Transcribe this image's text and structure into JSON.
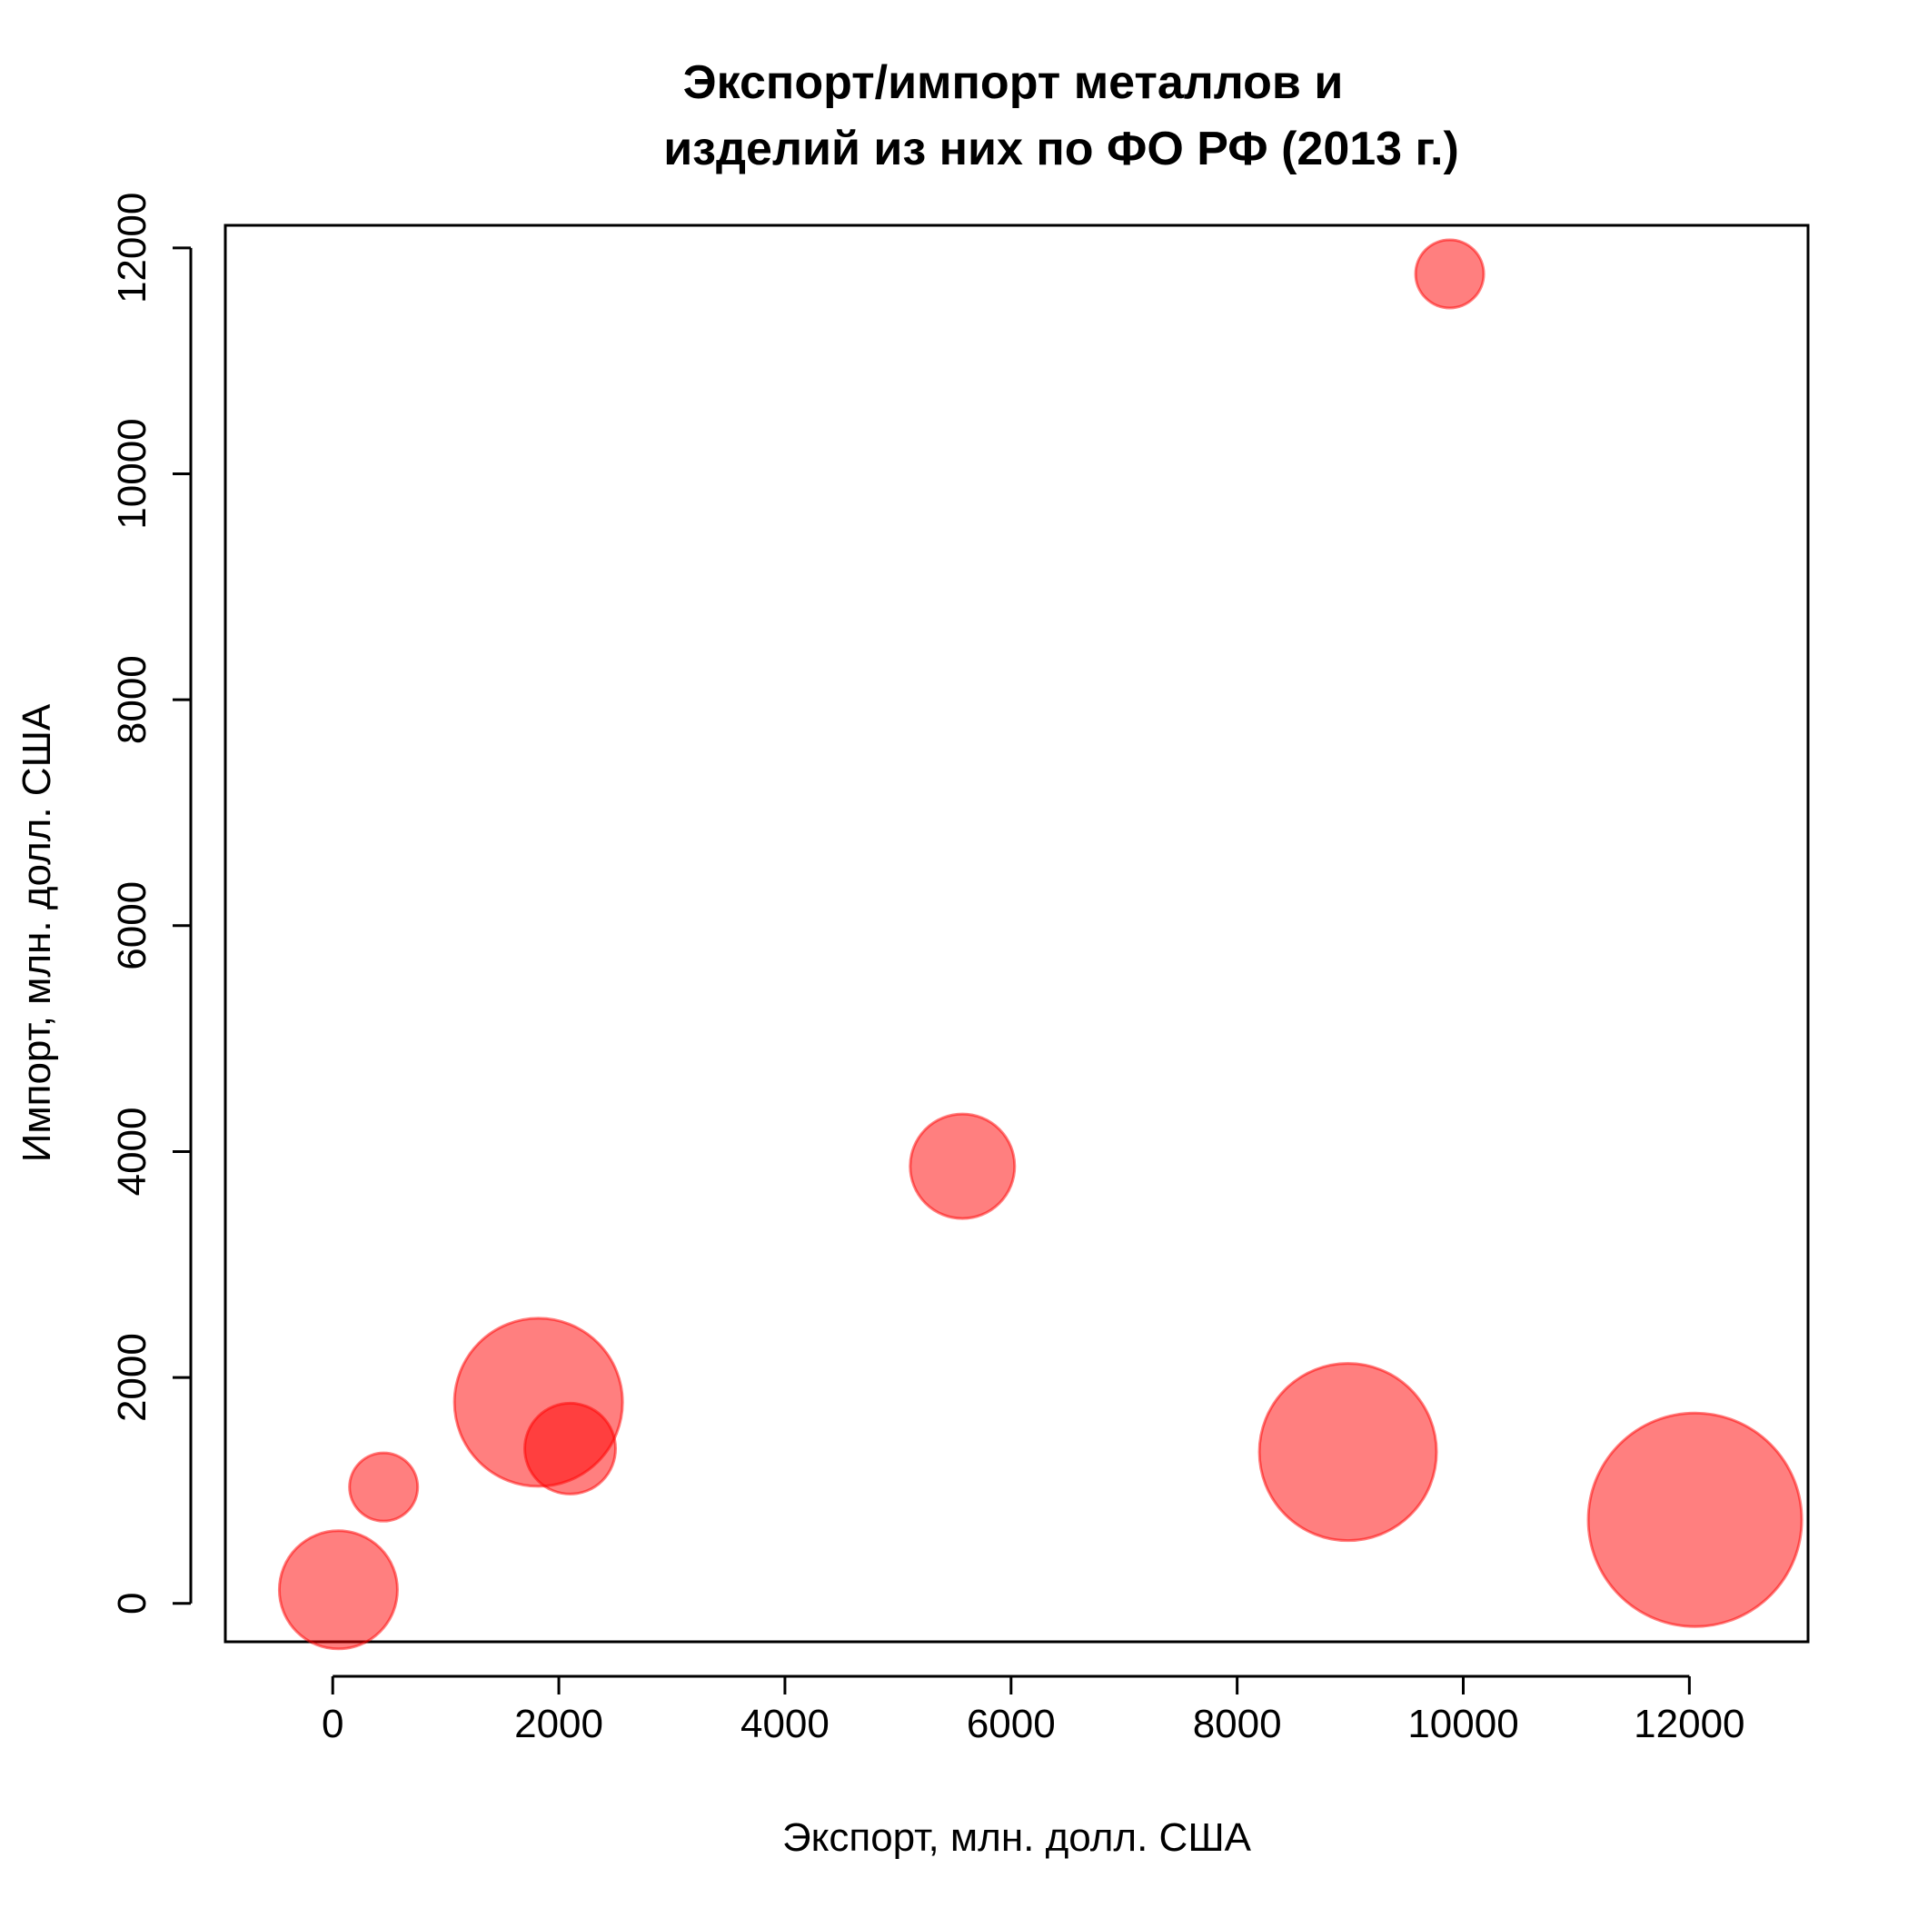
{
  "chart_data": {
    "type": "scatter",
    "title_lines": [
      "Экспорт/импорт металлов и",
      "изделий из них по ФО РФ (2013 г.)"
    ],
    "xlabel": "Экспорт, млн. долл. США",
    "ylabel": "Импорт, млн. долл. США",
    "xlim": [
      -950,
      13050
    ],
    "ylim": [
      -340,
      12200
    ],
    "x_ticks": [
      0,
      2000,
      4000,
      6000,
      8000,
      10000,
      12000
    ],
    "y_ticks": [
      0,
      2000,
      4000,
      6000,
      8000,
      10000,
      12000
    ],
    "x_tick_labels": [
      "0",
      "2000",
      "4000",
      "6000",
      "8000",
      "10000",
      "12000"
    ],
    "y_tick_labels": [
      "0",
      "2000",
      "4000",
      "6000",
      "8000",
      "10000",
      "12000"
    ],
    "bubble_color": "#ff0000",
    "bubble_opacity": 0.5,
    "size_note": "bubble size shows a relative magnitude (unitless, relative)",
    "points": [
      {
        "x": 50,
        "y": 120,
        "size": 1.3
      },
      {
        "x": 450,
        "y": 1030,
        "size": 0.75
      },
      {
        "x": 1820,
        "y": 1780,
        "size": 1.85
      },
      {
        "x": 2100,
        "y": 1370,
        "size": 1.0
      },
      {
        "x": 5570,
        "y": 3870,
        "size": 1.15
      },
      {
        "x": 8980,
        "y": 1340,
        "size": 1.95
      },
      {
        "x": 9880,
        "y": 11770,
        "size": 0.75
      },
      {
        "x": 12050,
        "y": 740,
        "size": 2.35
      }
    ]
  }
}
